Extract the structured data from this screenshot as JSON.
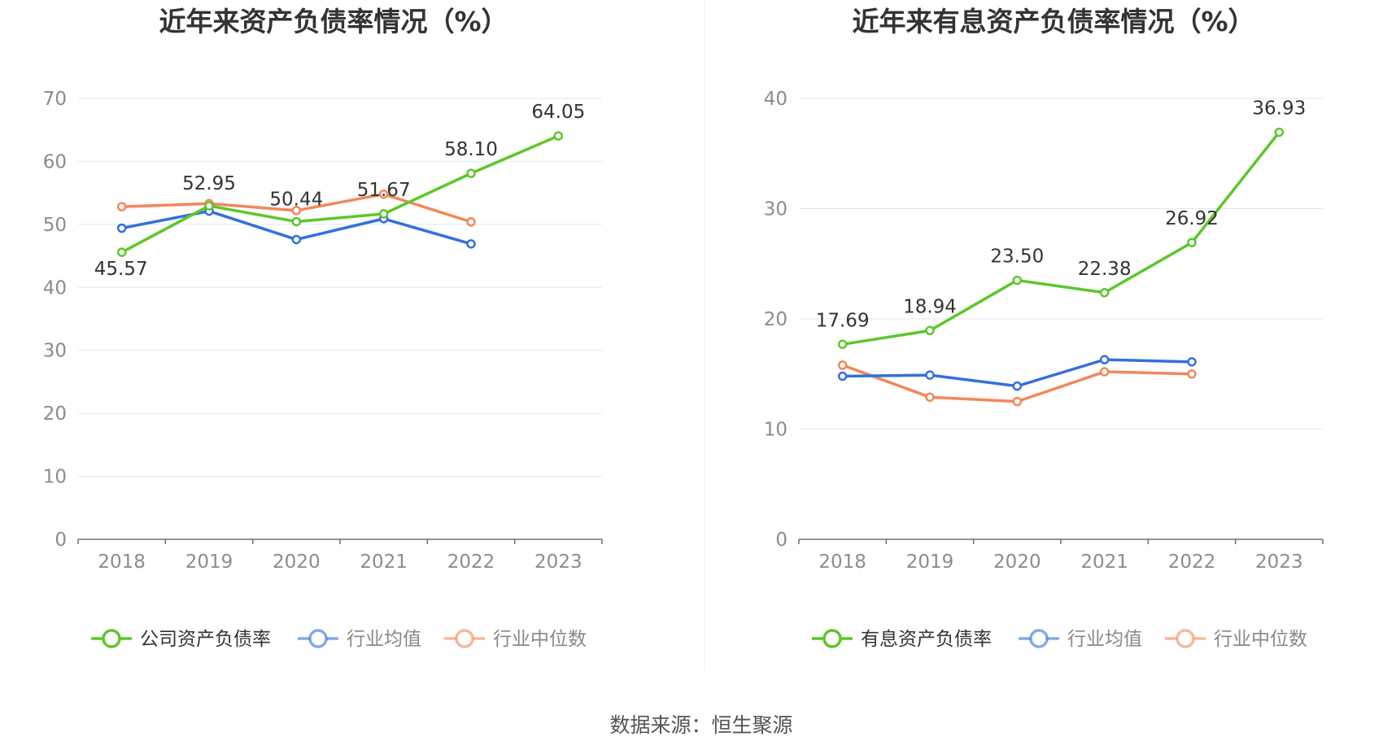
{
  "source_text": "数据来源：恒生聚源",
  "chart_data": [
    {
      "type": "line",
      "title": "近年来资产负债率情况（%）",
      "categories": [
        "2018",
        "2019",
        "2020",
        "2021",
        "2022",
        "2023"
      ],
      "ylim": [
        0,
        70
      ],
      "yticks": [
        0,
        10,
        20,
        30,
        40,
        50,
        60,
        70
      ],
      "grid": true,
      "legend_position": "bottom",
      "series": [
        {
          "name": "公司资产负债率",
          "color": "#5cc72a",
          "labeled": true,
          "values": [
            45.57,
            52.95,
            50.44,
            51.67,
            58.1,
            64.05
          ],
          "labels": [
            "45.57",
            "52.95",
            "50.44",
            "51.67",
            "58.10",
            "64.05"
          ]
        },
        {
          "name": "行业均值",
          "color": "#3470dd",
          "labeled": false,
          "values": [
            49.4,
            52.1,
            47.6,
            50.9,
            46.9,
            null
          ]
        },
        {
          "name": "行业中位数",
          "color": "#f2875a",
          "labeled": false,
          "values": [
            52.8,
            53.3,
            52.2,
            54.8,
            50.4,
            null
          ]
        }
      ]
    },
    {
      "type": "line",
      "title": "近年来有息资产负债率情况（%）",
      "categories": [
        "2018",
        "2019",
        "2020",
        "2021",
        "2022",
        "2023"
      ],
      "ylim": [
        0,
        40
      ],
      "yticks": [
        0,
        10,
        20,
        30,
        40
      ],
      "grid": true,
      "legend_position": "bottom",
      "series": [
        {
          "name": "有息资产负债率",
          "color": "#5cc72a",
          "labeled": true,
          "values": [
            17.69,
            18.94,
            23.5,
            22.38,
            26.92,
            36.93
          ],
          "labels": [
            "17.69",
            "18.94",
            "23.50",
            "22.38",
            "26.92",
            "36.93"
          ]
        },
        {
          "name": "行业均值",
          "color": "#3470dd",
          "labeled": false,
          "values": [
            14.8,
            14.9,
            13.9,
            16.3,
            16.1,
            null
          ]
        },
        {
          "name": "行业中位数",
          "color": "#f2875a",
          "labeled": false,
          "values": [
            15.8,
            12.9,
            12.5,
            15.2,
            15.0,
            null
          ]
        }
      ]
    }
  ]
}
